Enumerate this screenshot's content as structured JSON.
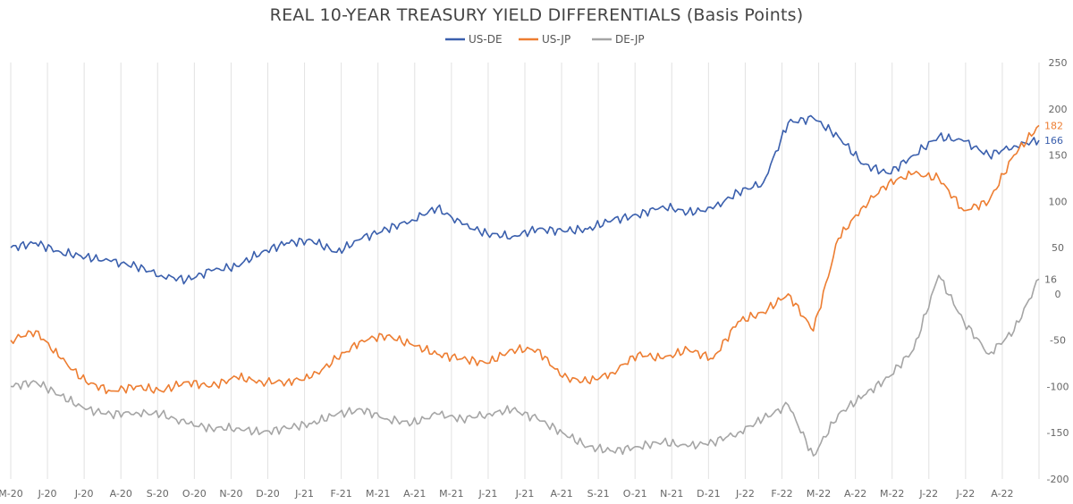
{
  "chart_data": {
    "type": "line",
    "title": "REAL 10-YEAR TREASURY YIELD DIFFERENTIALS (Basis Points)",
    "xlabel": "",
    "ylabel": "",
    "ylim": [
      -200,
      250
    ],
    "yticks": [
      250,
      200,
      150,
      100,
      50,
      0,
      -50,
      -100,
      -150,
      -200
    ],
    "xticks": [
      "M-20",
      "J-20",
      "J-20",
      "A-20",
      "S-20",
      "O-20",
      "N-20",
      "D-20",
      "J-21",
      "F-21",
      "M-21",
      "A-21",
      "M-21",
      "J-21",
      "J-21",
      "A-21",
      "S-21",
      "O-21",
      "N-21",
      "D-21",
      "J-22",
      "F-22",
      "M-22",
      "A-22",
      "M-22",
      "J-22",
      "J-22",
      "A-22"
    ],
    "grid": true,
    "legend": "top-center",
    "end_labels": [
      {
        "series": "US-JP",
        "text": "182"
      },
      {
        "series": "US-DE",
        "text": "166"
      },
      {
        "series": "DE-JP",
        "text": "16"
      }
    ],
    "series": [
      {
        "name": "US-DE",
        "color": "#3a5fad",
        "points": [
          [
            0,
            50
          ],
          [
            1,
            55
          ],
          [
            2,
            45
          ],
          [
            3,
            40
          ],
          [
            4,
            35
          ],
          [
            5,
            30
          ],
          [
            6,
            20
          ],
          [
            7,
            15
          ],
          [
            8,
            25
          ],
          [
            9,
            30
          ],
          [
            10,
            45
          ],
          [
            11,
            55
          ],
          [
            12,
            58
          ],
          [
            13,
            45
          ],
          [
            14,
            60
          ],
          [
            15,
            70
          ],
          [
            16,
            80
          ],
          [
            17,
            93
          ],
          [
            18,
            75
          ],
          [
            19,
            65
          ],
          [
            20,
            62
          ],
          [
            21,
            70
          ],
          [
            22,
            68
          ],
          [
            23,
            70
          ],
          [
            24,
            80
          ],
          [
            25,
            85
          ],
          [
            26,
            95
          ],
          [
            27,
            88
          ],
          [
            28,
            92
          ],
          [
            29,
            110
          ],
          [
            30,
            120
          ],
          [
            31,
            185
          ],
          [
            32,
            190
          ],
          [
            33,
            170
          ],
          [
            34,
            140
          ],
          [
            35,
            130
          ],
          [
            36,
            150
          ],
          [
            37,
            170
          ],
          [
            38,
            165
          ],
          [
            39,
            150
          ],
          [
            40,
            160
          ],
          [
            41,
            166
          ]
        ]
      },
      {
        "name": "US-JP",
        "color": "#ed7d31",
        "points": [
          [
            0,
            -50
          ],
          [
            1,
            -40
          ],
          [
            2,
            -70
          ],
          [
            3,
            -95
          ],
          [
            4,
            -105
          ],
          [
            5,
            -100
          ],
          [
            6,
            -105
          ],
          [
            7,
            -95
          ],
          [
            8,
            -100
          ],
          [
            9,
            -90
          ],
          [
            10,
            -95
          ],
          [
            11,
            -95
          ],
          [
            12,
            -90
          ],
          [
            13,
            -70
          ],
          [
            14,
            -50
          ],
          [
            15,
            -45
          ],
          [
            16,
            -55
          ],
          [
            17,
            -65
          ],
          [
            18,
            -70
          ],
          [
            19,
            -75
          ],
          [
            20,
            -60
          ],
          [
            21,
            -60
          ],
          [
            22,
            -90
          ],
          [
            23,
            -95
          ],
          [
            24,
            -85
          ],
          [
            25,
            -65
          ],
          [
            26,
            -70
          ],
          [
            27,
            -60
          ],
          [
            28,
            -70
          ],
          [
            29,
            -30
          ],
          [
            30,
            -20
          ],
          [
            31,
            0
          ],
          [
            32,
            -40
          ],
          [
            33,
            60
          ],
          [
            34,
            95
          ],
          [
            35,
            120
          ],
          [
            36,
            130
          ],
          [
            37,
            125
          ],
          [
            38,
            90
          ],
          [
            39,
            100
          ],
          [
            40,
            150
          ],
          [
            41,
            182
          ]
        ]
      },
      {
        "name": "DE-JP",
        "color": "#a5a5a5",
        "points": [
          [
            0,
            -100
          ],
          [
            1,
            -95
          ],
          [
            2,
            -110
          ],
          [
            3,
            -125
          ],
          [
            4,
            -130
          ],
          [
            5,
            -128
          ],
          [
            6,
            -130
          ],
          [
            7,
            -140
          ],
          [
            8,
            -145
          ],
          [
            9,
            -145
          ],
          [
            10,
            -150
          ],
          [
            11,
            -145
          ],
          [
            12,
            -140
          ],
          [
            13,
            -130
          ],
          [
            14,
            -125
          ],
          [
            15,
            -135
          ],
          [
            16,
            -140
          ],
          [
            17,
            -130
          ],
          [
            18,
            -135
          ],
          [
            19,
            -130
          ],
          [
            20,
            -125
          ],
          [
            21,
            -135
          ],
          [
            22,
            -150
          ],
          [
            23,
            -165
          ],
          [
            24,
            -170
          ],
          [
            25,
            -165
          ],
          [
            26,
            -160
          ],
          [
            27,
            -165
          ],
          [
            28,
            -160
          ],
          [
            29,
            -150
          ],
          [
            30,
            -135
          ],
          [
            31,
            -120
          ],
          [
            32,
            -175
          ],
          [
            33,
            -130
          ],
          [
            34,
            -110
          ],
          [
            35,
            -90
          ],
          [
            36,
            -60
          ],
          [
            37,
            20
          ],
          [
            38,
            -30
          ],
          [
            39,
            -65
          ],
          [
            40,
            -40
          ],
          [
            41,
            16
          ]
        ]
      }
    ]
  }
}
